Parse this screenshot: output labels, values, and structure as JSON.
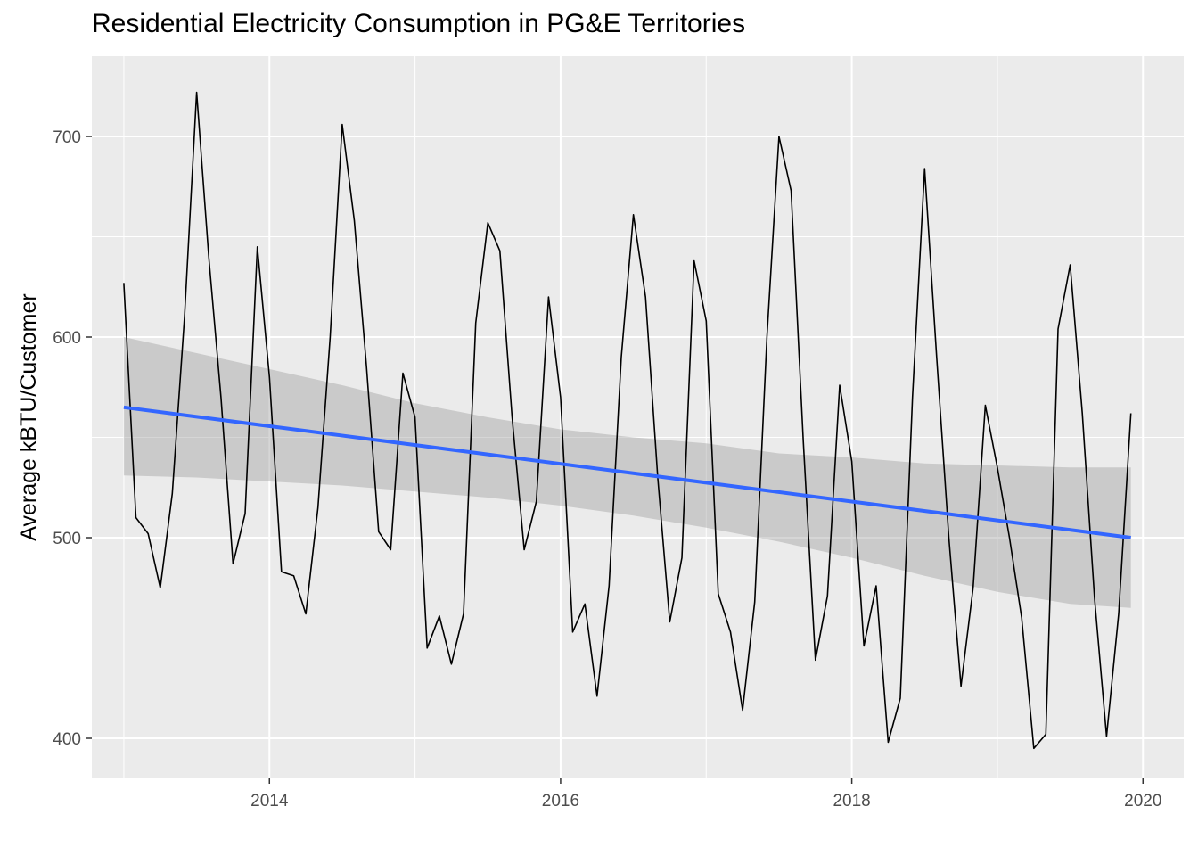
{
  "chart_data": {
    "type": "line",
    "title": "Residential Electricity Consumption in PG&E Territories",
    "xlabel": "",
    "ylabel": "Average kBTU/Customer",
    "xlim": [
      2012.78,
      2020.28
    ],
    "ylim": [
      380,
      740
    ],
    "x_ticks": [
      2014,
      2016,
      2018,
      2020
    ],
    "x_tick_labels": [
      "2014",
      "2016",
      "2018",
      "2020"
    ],
    "x_minor_ticks": [
      2013,
      2015,
      2017,
      2019
    ],
    "y_ticks": [
      400,
      500,
      600,
      700
    ],
    "y_tick_labels": [
      "400",
      "500",
      "600",
      "700"
    ],
    "y_minor_ticks": [
      450,
      550,
      650
    ],
    "grid": true,
    "panel_background": "#ebebeb",
    "grid_color": "#ffffff",
    "series": [
      {
        "color": "#000000",
        "x": [
          2013.0,
          2013.083,
          2013.167,
          2013.25,
          2013.333,
          2013.417,
          2013.5,
          2013.583,
          2013.667,
          2013.75,
          2013.833,
          2013.917,
          2014.0,
          2014.083,
          2014.167,
          2014.25,
          2014.333,
          2014.417,
          2014.5,
          2014.583,
          2014.667,
          2014.75,
          2014.833,
          2014.917,
          2015.0,
          2015.083,
          2015.167,
          2015.25,
          2015.333,
          2015.417,
          2015.5,
          2015.583,
          2015.667,
          2015.75,
          2015.833,
          2015.917,
          2016.0,
          2016.083,
          2016.167,
          2016.25,
          2016.333,
          2016.417,
          2016.5,
          2016.583,
          2016.667,
          2016.75,
          2016.833,
          2016.917,
          2017.0,
          2017.083,
          2017.167,
          2017.25,
          2017.333,
          2017.417,
          2017.5,
          2017.583,
          2017.667,
          2017.75,
          2017.833,
          2017.917,
          2018.0,
          2018.083,
          2018.167,
          2018.25,
          2018.333,
          2018.417,
          2018.5,
          2018.583,
          2018.667,
          2018.75,
          2018.833,
          2018.917,
          2019.0,
          2019.083,
          2019.167,
          2019.25,
          2019.333,
          2019.417,
          2019.5,
          2019.583,
          2019.667,
          2019.75,
          2019.833,
          2019.917
        ],
        "y": [
          627,
          510,
          502,
          475,
          522,
          610,
          722,
          640,
          570,
          487,
          512,
          645,
          580,
          483,
          481,
          462,
          515,
          600,
          706,
          658,
          585,
          503,
          494,
          582,
          560,
          445,
          461,
          437,
          462,
          607,
          657,
          643,
          560,
          494,
          518,
          620,
          570,
          453,
          467,
          421,
          476,
          590,
          661,
          620,
          530,
          458,
          490,
          638,
          608,
          472,
          453,
          414,
          468,
          600,
          700,
          673,
          548,
          439,
          471,
          576,
          538,
          446,
          476,
          398,
          420,
          570,
          684,
          590,
          500,
          426,
          475,
          566,
          535,
          500,
          460,
          395,
          402,
          604,
          636,
          562,
          470,
          401,
          462,
          562
        ]
      },
      {
        "color": "#3366ff",
        "x": [
          2013.0,
          2019.917
        ],
        "y": [
          565,
          500
        ]
      }
    ],
    "confidence_band": {
      "color": "#999999",
      "x": [
        2013.0,
        2013.5,
        2014.0,
        2014.5,
        2015.0,
        2015.5,
        2016.0,
        2016.5,
        2017.0,
        2017.5,
        2018.0,
        2018.5,
        2019.0,
        2019.5,
        2019.917
      ],
      "lower": [
        531,
        530,
        528,
        526,
        523,
        520,
        516,
        511,
        505,
        498,
        490,
        481,
        473,
        467,
        465
      ],
      "upper": [
        600,
        592,
        584,
        576,
        567,
        560,
        554,
        550,
        547,
        542,
        540,
        537,
        536,
        535,
        535
      ]
    }
  }
}
